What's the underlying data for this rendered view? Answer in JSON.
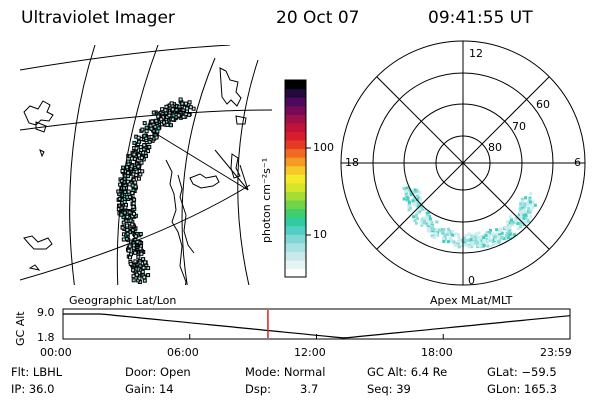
{
  "header": {
    "instrument": "Ultraviolet Imager",
    "date": "20 Oct 07",
    "time": "09:41:55 UT"
  },
  "colorbar": {
    "label": "photon cm⁻²s⁻¹",
    "ticks": [
      "100",
      "10"
    ],
    "colors": [
      "#ffffff",
      "#e6f3f3",
      "#c8e8ea",
      "#a6e1e3",
      "#7fd7d6",
      "#4fd0c3",
      "#30cca0",
      "#3fce6e",
      "#6fd44a",
      "#a6dc36",
      "#d6e52a",
      "#f5ea2a",
      "#f7c82a",
      "#f59a25",
      "#ef6a22",
      "#e63b23",
      "#d81d2c",
      "#c21238",
      "#9e1048",
      "#740a58",
      "#4b0a5e",
      "#25083e",
      "#000000"
    ]
  },
  "geo_map": {
    "label": "Geographic Lat/Lon"
  },
  "polar_plot": {
    "label": "Apex MLat/MLT",
    "mlt_labels": {
      "top": "12",
      "left": "18",
      "right": "6",
      "bottom": "0"
    },
    "lat_labels": [
      "60",
      "70",
      "80"
    ]
  },
  "altitude_plot": {
    "ylabel": "GC Alt",
    "yticks": [
      "9.0",
      "1.8"
    ],
    "xticks": [
      "00:00",
      "06:00",
      "12:00",
      "18:00",
      "23:59"
    ],
    "current_time_hours": 9.7
  },
  "status": {
    "flt": "Flt: LBHL",
    "ip": "IP: 36.0",
    "door": "Door: Open",
    "gain": "Gain: 14",
    "mode": "Mode: Normal",
    "dsp_label": "Dsp:",
    "dsp_value": "3.7",
    "gc_alt": "GC Alt: 6.4 Re",
    "seq": "Seq: 39",
    "glat": "GLat: −59.5",
    "glon": "GLon: 165.3"
  }
}
